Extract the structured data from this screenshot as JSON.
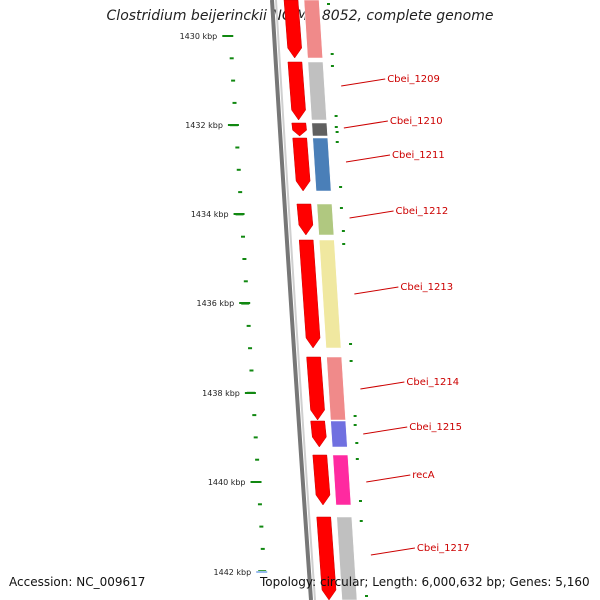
{
  "title": "Clostridium beijerinckii NCIMB 8052, complete genome",
  "footer": {
    "accession": "Accession: NC_009617",
    "topology": "Topology: circular; Length: 6,000,632 bp; Genes: 5,160"
  },
  "colors": {
    "strand_arrow": "#ff0000",
    "backbone": "#777777",
    "tick": "#118811",
    "label": "#cc0000"
  },
  "chart_data": {
    "type": "genome-map",
    "position_labels": [
      "1430 kbp",
      "1432 kbp",
      "1434 kbp",
      "1436 kbp",
      "1438 kbp",
      "1440 kbp",
      "1442 kbp"
    ],
    "genes": [
      {
        "label": "",
        "color": "#f08a8a"
      },
      {
        "label": "Cbei_1209",
        "color": "#c0c0c0"
      },
      {
        "label": "Cbei_1210",
        "color": "#606060"
      },
      {
        "label": "Cbei_1211",
        "color": "#4a7fb8"
      },
      {
        "label": "Cbei_1212",
        "color": "#b0c880"
      },
      {
        "label": "Cbei_1213",
        "color": "#f0e8a0"
      },
      {
        "label": "Cbei_1214",
        "color": "#f08a8a"
      },
      {
        "label": "Cbei_1215",
        "color": "#7070e0"
      },
      {
        "label": "recA",
        "color": "#ff2aa0"
      },
      {
        "label": "Cbei_1217",
        "color": "#c0c0c0"
      }
    ]
  }
}
